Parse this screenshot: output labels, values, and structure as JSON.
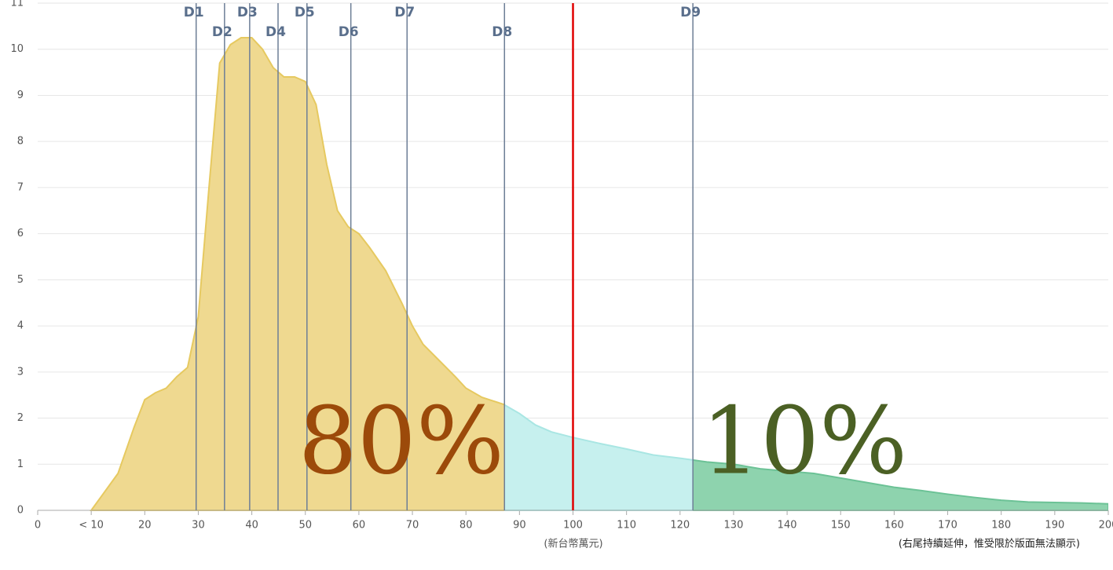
{
  "chart_data": {
    "type": "area",
    "x_label": "(新台幣萬元)",
    "note": "(右尾持續延伸，惟受限於版面無法顯示)",
    "x": [
      10,
      15,
      18,
      20,
      22,
      24,
      26,
      28,
      30,
      32,
      34,
      36,
      38,
      40,
      42,
      44,
      46,
      48,
      50,
      52,
      54,
      56,
      58,
      60,
      62,
      65,
      68,
      70,
      72,
      75,
      78,
      80,
      83,
      87,
      90,
      93,
      96,
      100,
      105,
      110,
      115,
      120,
      125,
      130,
      135,
      140,
      145,
      150,
      155,
      160,
      165,
      170,
      175,
      180,
      185,
      190,
      195,
      200
    ],
    "values": [
      0,
      0.8,
      1.8,
      2.4,
      2.55,
      2.65,
      2.9,
      3.1,
      4.2,
      7,
      9.7,
      10.1,
      10.25,
      10.25,
      10.0,
      9.6,
      9.4,
      9.4,
      9.3,
      8.8,
      7.5,
      6.5,
      6.15,
      6.0,
      5.7,
      5.2,
      4.5,
      4.0,
      3.6,
      3.25,
      2.9,
      2.65,
      2.45,
      2.3,
      2.1,
      1.85,
      1.7,
      1.58,
      1.45,
      1.33,
      1.2,
      1.13,
      1.05,
      1.0,
      0.9,
      0.85,
      0.8,
      0.7,
      0.6,
      0.5,
      0.43,
      0.35,
      0.28,
      0.22,
      0.18,
      0.17,
      0.16,
      0.14
    ],
    "region_colors": [
      "#efd990",
      "#c6f0ee",
      "#8ed3ae"
    ],
    "region_edge_colors": [
      "#e6c960",
      "#a9e6e3",
      "#6cc296"
    ],
    "deciles": [
      {
        "label": "D1",
        "value": 29.6
      },
      {
        "label": "D2",
        "value": 34.9
      },
      {
        "label": "D3",
        "value": 39.6
      },
      {
        "label": "D4",
        "value": 44.9
      },
      {
        "label": "D5",
        "value": 50.3
      },
      {
        "label": "D6",
        "value": 58.5
      },
      {
        "label": "D7",
        "value": 69.0
      },
      {
        "label": "D8",
        "value": 87.2
      },
      {
        "label": "D9",
        "value": 122.4
      }
    ],
    "marker_line": {
      "value": 100,
      "color": "#e00000"
    },
    "annotations": [
      {
        "text": "80%",
        "color": "#9c4a0a"
      },
      {
        "text": "10%",
        "color": "#4b6024"
      }
    ],
    "xlim": [
      0,
      200
    ],
    "xticks": [
      0,
      {
        "value": 10,
        "label": "< 10"
      },
      20,
      30,
      40,
      50,
      60,
      70,
      80,
      90,
      100,
      110,
      120,
      130,
      140,
      150,
      160,
      170,
      180,
      190,
      200
    ],
    "ylim": [
      0,
      11
    ],
    "yticks": [
      0,
      1,
      2,
      3,
      4,
      5,
      6,
      7,
      8,
      9,
      10,
      11
    ],
    "grid": true
  }
}
